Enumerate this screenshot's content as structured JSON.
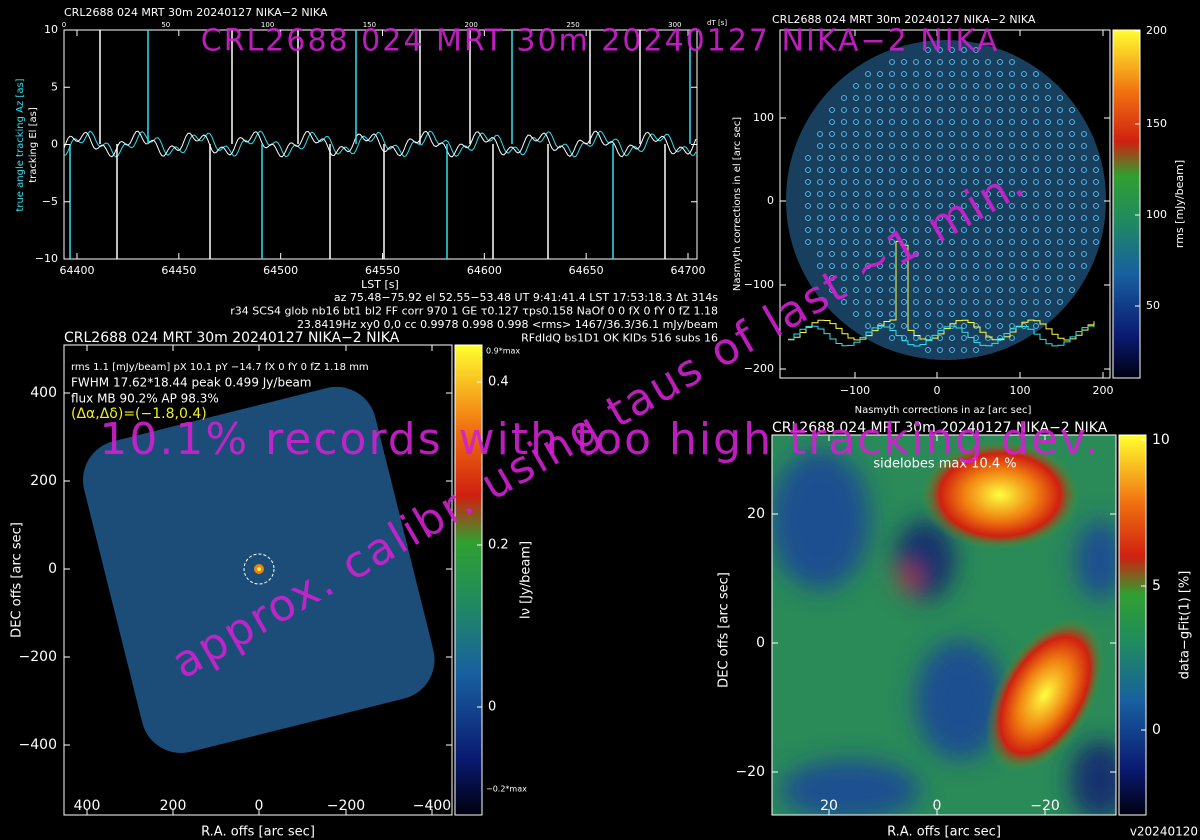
{
  "header_overlay": "CRL2688  024 MRT 30m  20240127 NIKA−2 NIKA",
  "warning_overlay": "10.1% records with too high tracking dev.",
  "calibration_overlay": "approx. calibr. using taus of last ~1 min.",
  "version": "v20240120",
  "tracking_panel": {
    "title": "CRL2688  024 MRT 30m  20240127 NIKA−2 NIKA",
    "top_ticks": [
      "0",
      "50",
      "100",
      "150",
      "200",
      "250",
      "300"
    ],
    "top_unit": "dT [s]",
    "x_ticks": [
      "64400",
      "64450",
      "64500",
      "64550",
      "64600",
      "64650",
      "64700"
    ],
    "x_label": "LST [s]",
    "y_ticks": [
      "10",
      "5",
      "0",
      "−5",
      "−10"
    ],
    "y_label_az": "true angle tracking Az [as]",
    "y_label_el": "tracking El [as]"
  },
  "info_lines": [
    "az 75.48−75.92 el 52.55−53.48 UT 9:41:41.4 LST 17:53:18.3 Δt 314s",
    "r34 SCS4 glob nb16 bt1 bl2 FF corr 970 1 GE τ0.127 τps0.158 NaOf 0 0 fX 0 fY 0 fZ 1.18",
    "23.8419Hz xy0 0,0 cc 0.9978 0.998 0.998 <rms> 1467/36.3/36.1 mJy/beam",
    "RFdIdQ bs1D1 OK KIDs 516 subs 16"
  ],
  "nasmyth_panel": {
    "title": "CRL2688  024 MRT 30m  20240127 NIKA−2 NIKA",
    "x_ticks": [
      "−100",
      "0",
      "100",
      "200"
    ],
    "y_ticks": [
      "100",
      "0",
      "−100",
      "−200"
    ],
    "x_label": "Nasmyth corrections in az [arc sec]",
    "y_label": "Nasmyth corrections in el [arc sec]",
    "colorbar_ticks": [
      "200",
      "150",
      "100",
      "50"
    ],
    "colorbar_label": "rms [mJy/beam]"
  },
  "map_panel": {
    "title": "CRL2688  024 MRT 30m  20240127 NIKA−2 NIKA",
    "info_lines": [
      "rms 1.1 [mJy/beam] pX 10.1 pY −14.7 fX 0 fY 0 fZ 1.18 mm",
      "FWHM 17.62*18.44 peak 0.499 Jy/beam",
      "flux MB 90.2% AP 98.3%"
    ],
    "offset_label": "(Δα,Δδ)=(−1.8,0.4)",
    "x_ticks": [
      "400",
      "200",
      "0",
      "−200",
      "−400"
    ],
    "y_ticks": [
      "400",
      "200",
      "0",
      "−200",
      "−400"
    ],
    "x_label": "R.A. offs [arc sec]",
    "y_label": "DEC offs [arc sec]",
    "colorbar_ticks": [
      "0.4",
      "0.2",
      "0"
    ],
    "colorbar_top": "0.9*max",
    "colorbar_bottom": "−0.2*max",
    "colorbar_label": "Iν [Jy/beam]"
  },
  "residual_panel": {
    "title": "CRL2688  024 MRT 30m  20240127 NIKA−2 NIKA",
    "annotation": "sidelobes max 10.4 %",
    "x_ticks": [
      "20",
      "0",
      "−20"
    ],
    "y_ticks": [
      "20",
      "0",
      "−20"
    ],
    "x_label": "R.A. offs [arc sec]",
    "y_label": "DEC offs [arc sec]",
    "colorbar_ticks": [
      "10",
      "5",
      "0"
    ],
    "colorbar_label": "data−gFit(1) [%]"
  }
}
